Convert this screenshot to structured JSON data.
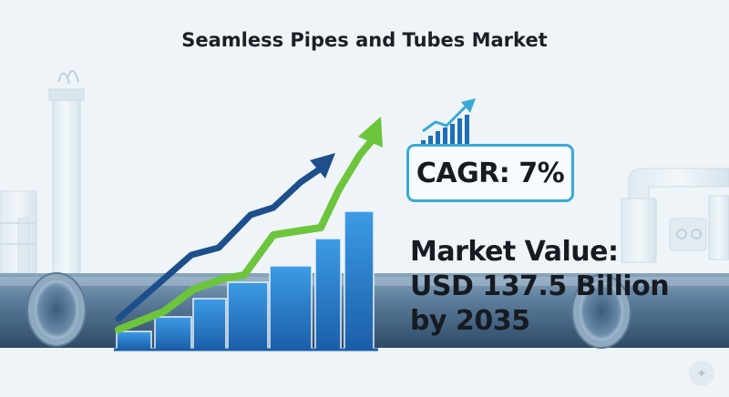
{
  "title": "Seamless Pipes and Tubes Market",
  "cagr": {
    "text": "CAGR: 7%"
  },
  "market_value": {
    "line1": "Market Value:",
    "line2": "USD 137.5 Billion",
    "line3": "by 2035"
  },
  "colors": {
    "background": "#eef4f8",
    "pipe_blue": "#4a6a8c",
    "bar_blue": "#2a7dc9",
    "arrow_dark_blue": "#1d4f8c",
    "arrow_green": "#6cc53b",
    "cagr_border": "#3aa9d6"
  },
  "icons": {
    "cagr_icon": "bar-chart-growth-icon",
    "corner": "sparkle-icon"
  }
}
